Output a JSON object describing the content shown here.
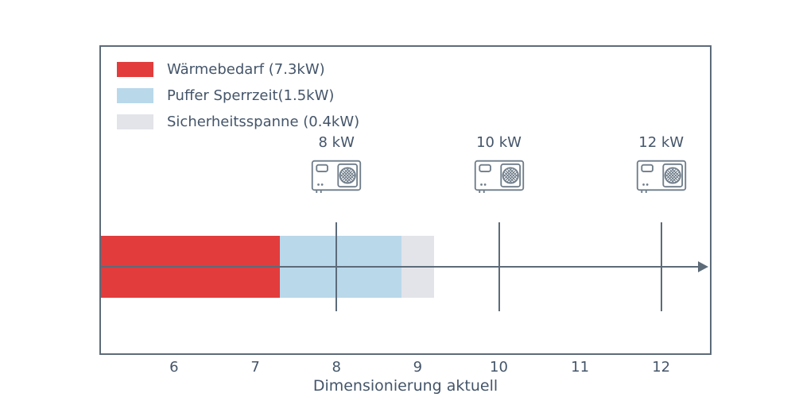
{
  "chart_data": {
    "type": "bar",
    "orientation": "horizontal-stacked",
    "title": "",
    "xlabel": "Dimensionierung aktuell",
    "xlim": [
      5.1,
      12.6
    ],
    "x_ticks": [
      6,
      7,
      8,
      9,
      10,
      11,
      12
    ],
    "grid": false,
    "segments": [
      {
        "name": "Wärmebedarf",
        "value_kw": 7.3,
        "start": 5.1,
        "end": 7.3,
        "color": "#e23c3c"
      },
      {
        "name": "Puffer Sperrzeit",
        "value_kw": 1.5,
        "start": 7.3,
        "end": 8.8,
        "color": "#b9d8ea"
      },
      {
        "name": "Sicherheitsspanne",
        "value_kw": 0.4,
        "start": 8.8,
        "end": 9.2,
        "color": "#e3e4e9"
      }
    ],
    "markers": [
      {
        "x": 8,
        "label": "8 kW",
        "icon": "heat-pump-icon"
      },
      {
        "x": 10,
        "label": "10 kW",
        "icon": "heat-pump-icon"
      },
      {
        "x": 12,
        "label": "12 kW",
        "icon": "heat-pump-icon"
      }
    ],
    "legend": {
      "position": "upper-left",
      "items": [
        {
          "label": "Wärmebedarf (7.3kW)",
          "color": "#e23c3c"
        },
        {
          "label": "Puffer Sperrzeit(1.5kW)",
          "color": "#b9d8ea"
        },
        {
          "label": "Sicherheitsspanne (0.4kW)",
          "color": "#e3e4e9"
        }
      ]
    },
    "colors": {
      "frame": "#5d6b79",
      "axis_line": "#5d6b79",
      "text": "#44556a",
      "icon_stroke": "#6e7c89"
    }
  }
}
